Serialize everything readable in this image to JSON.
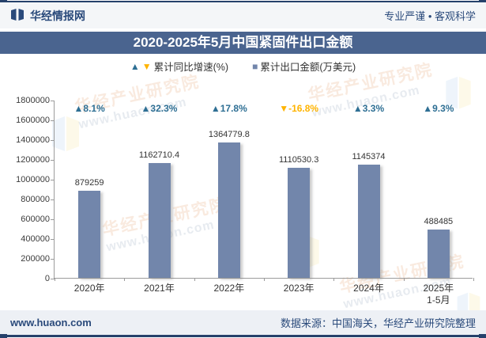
{
  "header": {
    "brand": "华经情报网",
    "slogan": "专业严谨 • 客观科学"
  },
  "title": "2020-2025年5月中国紧固件出口金额",
  "legend": {
    "growth_label": "累计同比增速(%)",
    "amount_label": "累计出口金额(万美元)",
    "up_marker": "▲",
    "down_marker": "▼",
    "square_marker": "■"
  },
  "chart_data": {
    "type": "bar",
    "title": "2020-2025年5月中国紧固件出口金额",
    "categories": [
      "2020年",
      "2021年",
      "2022年",
      "2023年",
      "2024年",
      "2025年\n1-5月"
    ],
    "series": [
      {
        "name": "累计出口金额(万美元)",
        "type": "bar",
        "values": [
          879259,
          1162710.4,
          1364779.8,
          1110530.3,
          1145374,
          488485
        ]
      },
      {
        "name": "累计同比增速(%)",
        "type": "point-label",
        "unit": "%",
        "values": [
          8.1,
          32.3,
          17.8,
          -16.8,
          3.3,
          9.3
        ]
      }
    ],
    "ylim": [
      0,
      1800000
    ],
    "ytick_step": 200000,
    "grid": false,
    "legend_position": "top",
    "colors": {
      "bar": "#7286AB",
      "up": "#2E6F94",
      "down": "#FFB400"
    }
  },
  "footer": {
    "site": "www.huaon.com",
    "source": "数据来源：中国海关，华经产业研究院整理"
  },
  "watermark": {
    "line1": "华经产业研究院",
    "line2": "www.huaon.com"
  }
}
